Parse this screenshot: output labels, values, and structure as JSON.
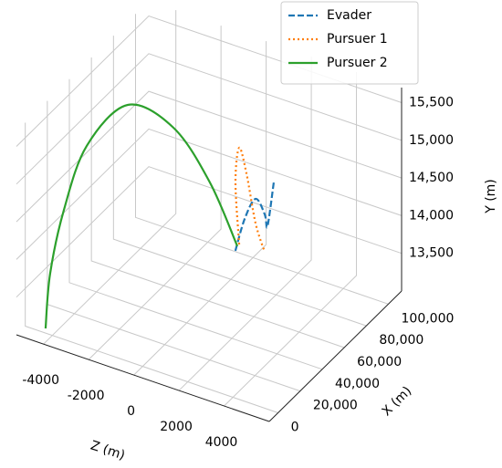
{
  "chart_data": {
    "type": "line3d",
    "xlabel": "X (m)",
    "ylabel": "Y (m)",
    "zlabel": "Z (m)",
    "xlim": [
      -8000,
      112000
    ],
    "ylim": [
      13000,
      15700
    ],
    "zlim": [
      -5200,
      6000
    ],
    "xticks": [
      0,
      {
        "value": 20000,
        "label": "20,000"
      },
      {
        "value": 40000,
        "label": "40,000"
      },
      {
        "value": 60000,
        "label": "60,000"
      },
      {
        "value": 80000,
        "label": "80,000"
      },
      {
        "value": 100000,
        "label": "100,000"
      }
    ],
    "yticks": [
      {
        "value": 13500,
        "label": "13,500"
      },
      {
        "value": 14000,
        "label": "14,000"
      },
      {
        "value": 14500,
        "label": "14,500"
      },
      {
        "value": 15000,
        "label": "15,000"
      },
      {
        "value": 15500,
        "label": "15,500"
      }
    ],
    "zticks": [
      -4000,
      -2000,
      0,
      2000,
      4000
    ],
    "grid": true,
    "legend": "upper right",
    "series": [
      {
        "name": "Evader",
        "color": "#1f77b4",
        "linestyle": "dashed",
        "x": [
          50000,
          52000,
          54000,
          56000,
          57000,
          60000
        ],
        "y": [
          13983,
          14410,
          14687,
          14483,
          14318,
          14870
        ],
        "z": [
          1665,
          1979,
          2366,
          2674,
          2745,
          2877
        ]
      },
      {
        "name": "Pursuer 1",
        "color": "#ff7f0e",
        "linestyle": "dotted",
        "x": [
          50000,
          51000,
          53000,
          55000,
          57000,
          59000
        ],
        "y": [
          14085,
          14872,
          15310,
          14964,
          14302,
          13926
        ],
        "z": [
          1834,
          1621,
          1688,
          1912,
          2220,
          2526
        ]
      },
      {
        "name": "Pursuer 2",
        "color": "#2ca02c",
        "linestyle": "solid",
        "x": [
          0,
          1000,
          3000,
          7000,
          20000,
          32000,
          42000,
          50000
        ],
        "y": [
          13062,
          13790,
          14659,
          15535,
          16013,
          15685,
          14930,
          14054
        ],
        "z": [
          -4300,
          -4147,
          -3635,
          -2819,
          -1638,
          -198,
          927,
          1752
        ]
      }
    ]
  }
}
